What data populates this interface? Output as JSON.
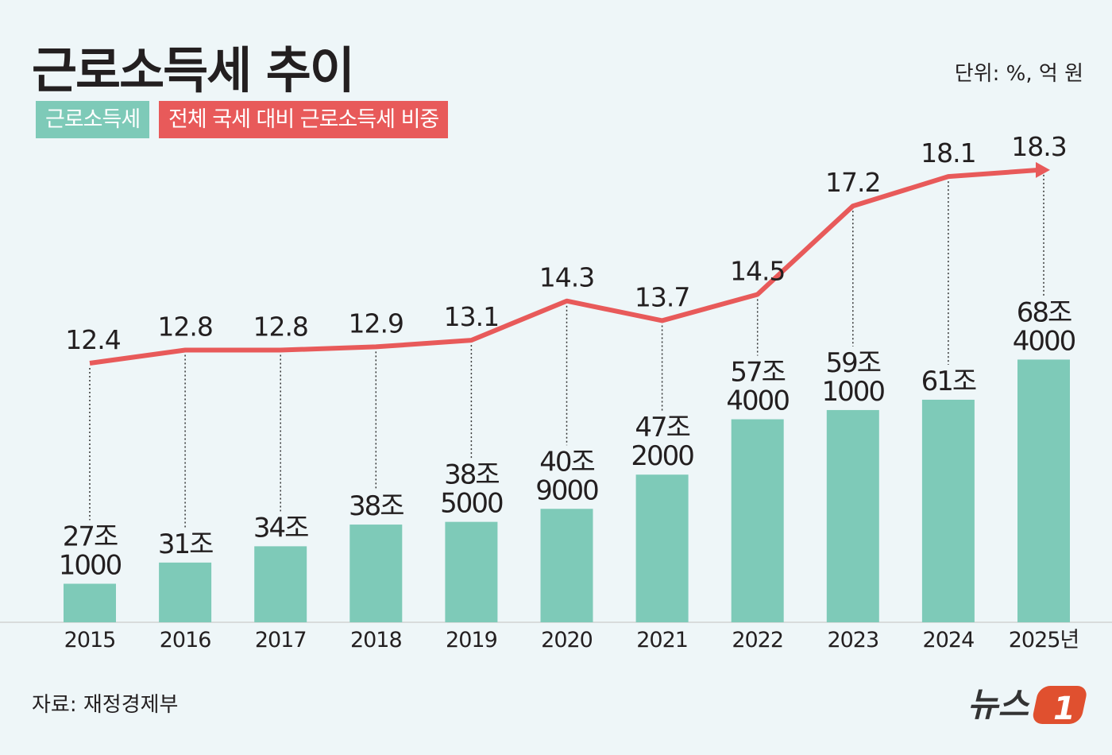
{
  "title": "근로소득세 추이",
  "unit_label": "단위: %, 억 원",
  "source": "자료: 재정경제부",
  "logo_text": "뉴스1",
  "colors": {
    "bar": "#7ecab8",
    "line": "#e85a5a",
    "background": "#eef6f8",
    "text": "#231f20"
  },
  "chart_data": {
    "type": "bar+line",
    "categories": [
      "2015",
      "2016",
      "2017",
      "2018",
      "2019",
      "2020",
      "2021",
      "2022",
      "2023",
      "2024",
      "2025년"
    ],
    "legend": [
      "근로소득세",
      "전체 국세 대비 근로소득세 비중"
    ],
    "legend_placement": "top-left",
    "grid": false,
    "series": [
      {
        "name": "근로소득세",
        "type": "bar",
        "unit": "억 원",
        "values": [
          271000,
          310000,
          340000,
          380000,
          385000,
          409000,
          472000,
          574000,
          591000,
          610000,
          684000
        ],
        "labels": [
          [
            "27조",
            "1000"
          ],
          [
            "31조"
          ],
          [
            "34조"
          ],
          [
            "38조"
          ],
          [
            "38조",
            "5000"
          ],
          [
            "40조",
            "9000"
          ],
          [
            "47조",
            "2000"
          ],
          [
            "57조",
            "4000"
          ],
          [
            "59조",
            "1000"
          ],
          [
            "61조"
          ],
          [
            "68조",
            "4000"
          ]
        ]
      },
      {
        "name": "전체 국세 대비 근로소득세 비중",
        "type": "line",
        "unit": "%",
        "values": [
          12.4,
          12.8,
          12.8,
          12.9,
          13.1,
          14.3,
          13.7,
          14.5,
          17.2,
          18.1,
          18.3
        ],
        "labels": [
          "12.4",
          "12.8",
          "12.8",
          "12.9",
          "13.1",
          "14.3",
          "13.7",
          "14.5",
          "17.2",
          "18.1",
          "18.3"
        ]
      }
    ]
  }
}
